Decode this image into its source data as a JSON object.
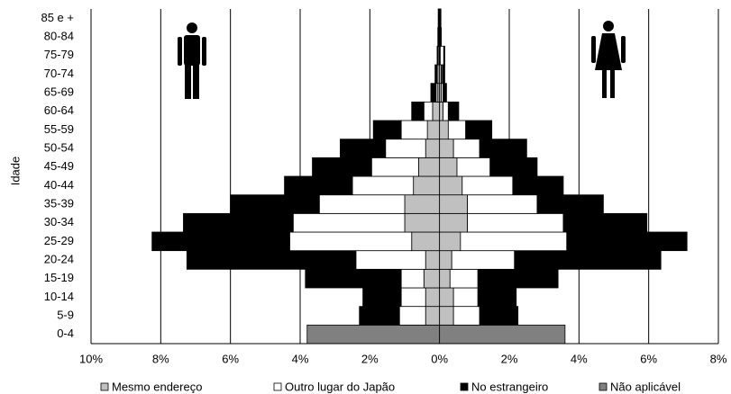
{
  "chart_data": {
    "type": "pyramid",
    "y_axis_label": "Idade",
    "categories": [
      "0-4",
      "5-9",
      "10-14",
      "15-19",
      "20-24",
      "25-29",
      "30-34",
      "35-39",
      "40-44",
      "45-49",
      "50-54",
      "55-59",
      "60-64",
      "65-69",
      "70-74",
      "75-79",
      "80-84",
      "85 e +"
    ],
    "xlim": [
      -10,
      8
    ],
    "xticks": [
      {
        "value": -10,
        "label": "10%"
      },
      {
        "value": -8,
        "label": "8%"
      },
      {
        "value": -6,
        "label": "6%"
      },
      {
        "value": -4,
        "label": "4%"
      },
      {
        "value": -2,
        "label": "2%"
      },
      {
        "value": 0,
        "label": "0%"
      },
      {
        "value": 2,
        "label": "2%"
      },
      {
        "value": 4,
        "label": "4%"
      },
      {
        "value": 6,
        "label": "6%"
      },
      {
        "value": 8,
        "label": "8%"
      }
    ],
    "grid": true,
    "series": [
      {
        "name": "Mesmo endereço",
        "color": "#c0c0c0",
        "male": [
          0,
          0.4,
          0.4,
          0.45,
          0.4,
          0.8,
          1.0,
          1.0,
          0.75,
          0.6,
          0.4,
          0.35,
          0.2,
          0.05,
          0.05,
          0.02,
          0.02,
          0.02
        ],
        "female": [
          0,
          0.4,
          0.4,
          0.3,
          0.35,
          0.6,
          0.8,
          0.8,
          0.65,
          0.5,
          0.4,
          0.25,
          0.1,
          0.05,
          0.05,
          0.02,
          0.02,
          0.02
        ]
      },
      {
        "name": "Outro lugar do Japão",
        "color": "#ffffff",
        "male": [
          0,
          0.75,
          0.7,
          0.65,
          2.0,
          3.5,
          3.2,
          2.45,
          1.75,
          1.35,
          1.15,
          0.75,
          0.25,
          0.05,
          0.03,
          0.03,
          0.02,
          0.01
        ],
        "female": [
          0,
          0.75,
          0.7,
          0.8,
          1.8,
          3.05,
          2.75,
          2.0,
          1.45,
          0.95,
          0.75,
          0.5,
          0.15,
          0.05,
          0.03,
          0.1,
          0.02,
          0.01
        ]
      },
      {
        "name": "No estrangeiro",
        "color": "#000000",
        "male": [
          0,
          1.15,
          1.1,
          2.75,
          4.85,
          3.95,
          3.15,
          2.55,
          1.95,
          1.7,
          1.3,
          0.8,
          0.35,
          0.15,
          0.05,
          0.02,
          0.01,
          0.01
        ],
        "female": [
          0,
          1.1,
          1.1,
          2.3,
          4.2,
          3.45,
          2.4,
          1.9,
          1.45,
          1.35,
          1.35,
          0.75,
          0.3,
          0.1,
          0.07,
          0.03,
          0.01,
          0.01
        ]
      },
      {
        "name": "Não aplicável",
        "color": "#808080",
        "male": [
          3.8,
          0,
          0,
          0,
          0,
          0,
          0,
          0,
          0,
          0,
          0,
          0,
          0,
          0,
          0,
          0,
          0,
          0
        ],
        "female": [
          3.6,
          0,
          0,
          0,
          0,
          0,
          0,
          0,
          0,
          0,
          0,
          0,
          0,
          0,
          0,
          0,
          0,
          0
        ]
      }
    ]
  }
}
